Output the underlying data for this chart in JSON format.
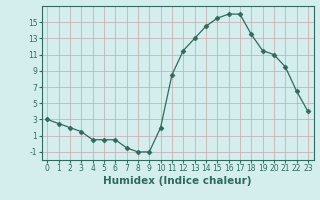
{
  "x": [
    0,
    1,
    2,
    3,
    4,
    5,
    6,
    7,
    8,
    9,
    10,
    11,
    12,
    13,
    14,
    15,
    16,
    17,
    18,
    19,
    20,
    21,
    22,
    23
  ],
  "y": [
    3,
    2.5,
    2,
    1.5,
    0.5,
    0.5,
    0.5,
    -0.5,
    -1,
    -1,
    2,
    8.5,
    11.5,
    13,
    14.5,
    15.5,
    16,
    16,
    13.5,
    11.5,
    11,
    9.5,
    6.5,
    4
  ],
  "line_color": "#2e6b5e",
  "marker": "D",
  "marker_size": 2.5,
  "bg_color": "#d4eeee",
  "grid_color": "#b8d8d8",
  "xlabel": "Humidex (Indice chaleur)",
  "xlim": [
    -0.5,
    23.5
  ],
  "ylim": [
    -2,
    17
  ],
  "yticks": [
    -1,
    1,
    3,
    5,
    7,
    9,
    11,
    13,
    15
  ],
  "xticks": [
    0,
    1,
    2,
    3,
    4,
    5,
    6,
    7,
    8,
    9,
    10,
    11,
    12,
    13,
    14,
    15,
    16,
    17,
    18,
    19,
    20,
    21,
    22,
    23
  ],
  "tick_label_fontsize": 5.5,
  "xlabel_fontsize": 7.5
}
